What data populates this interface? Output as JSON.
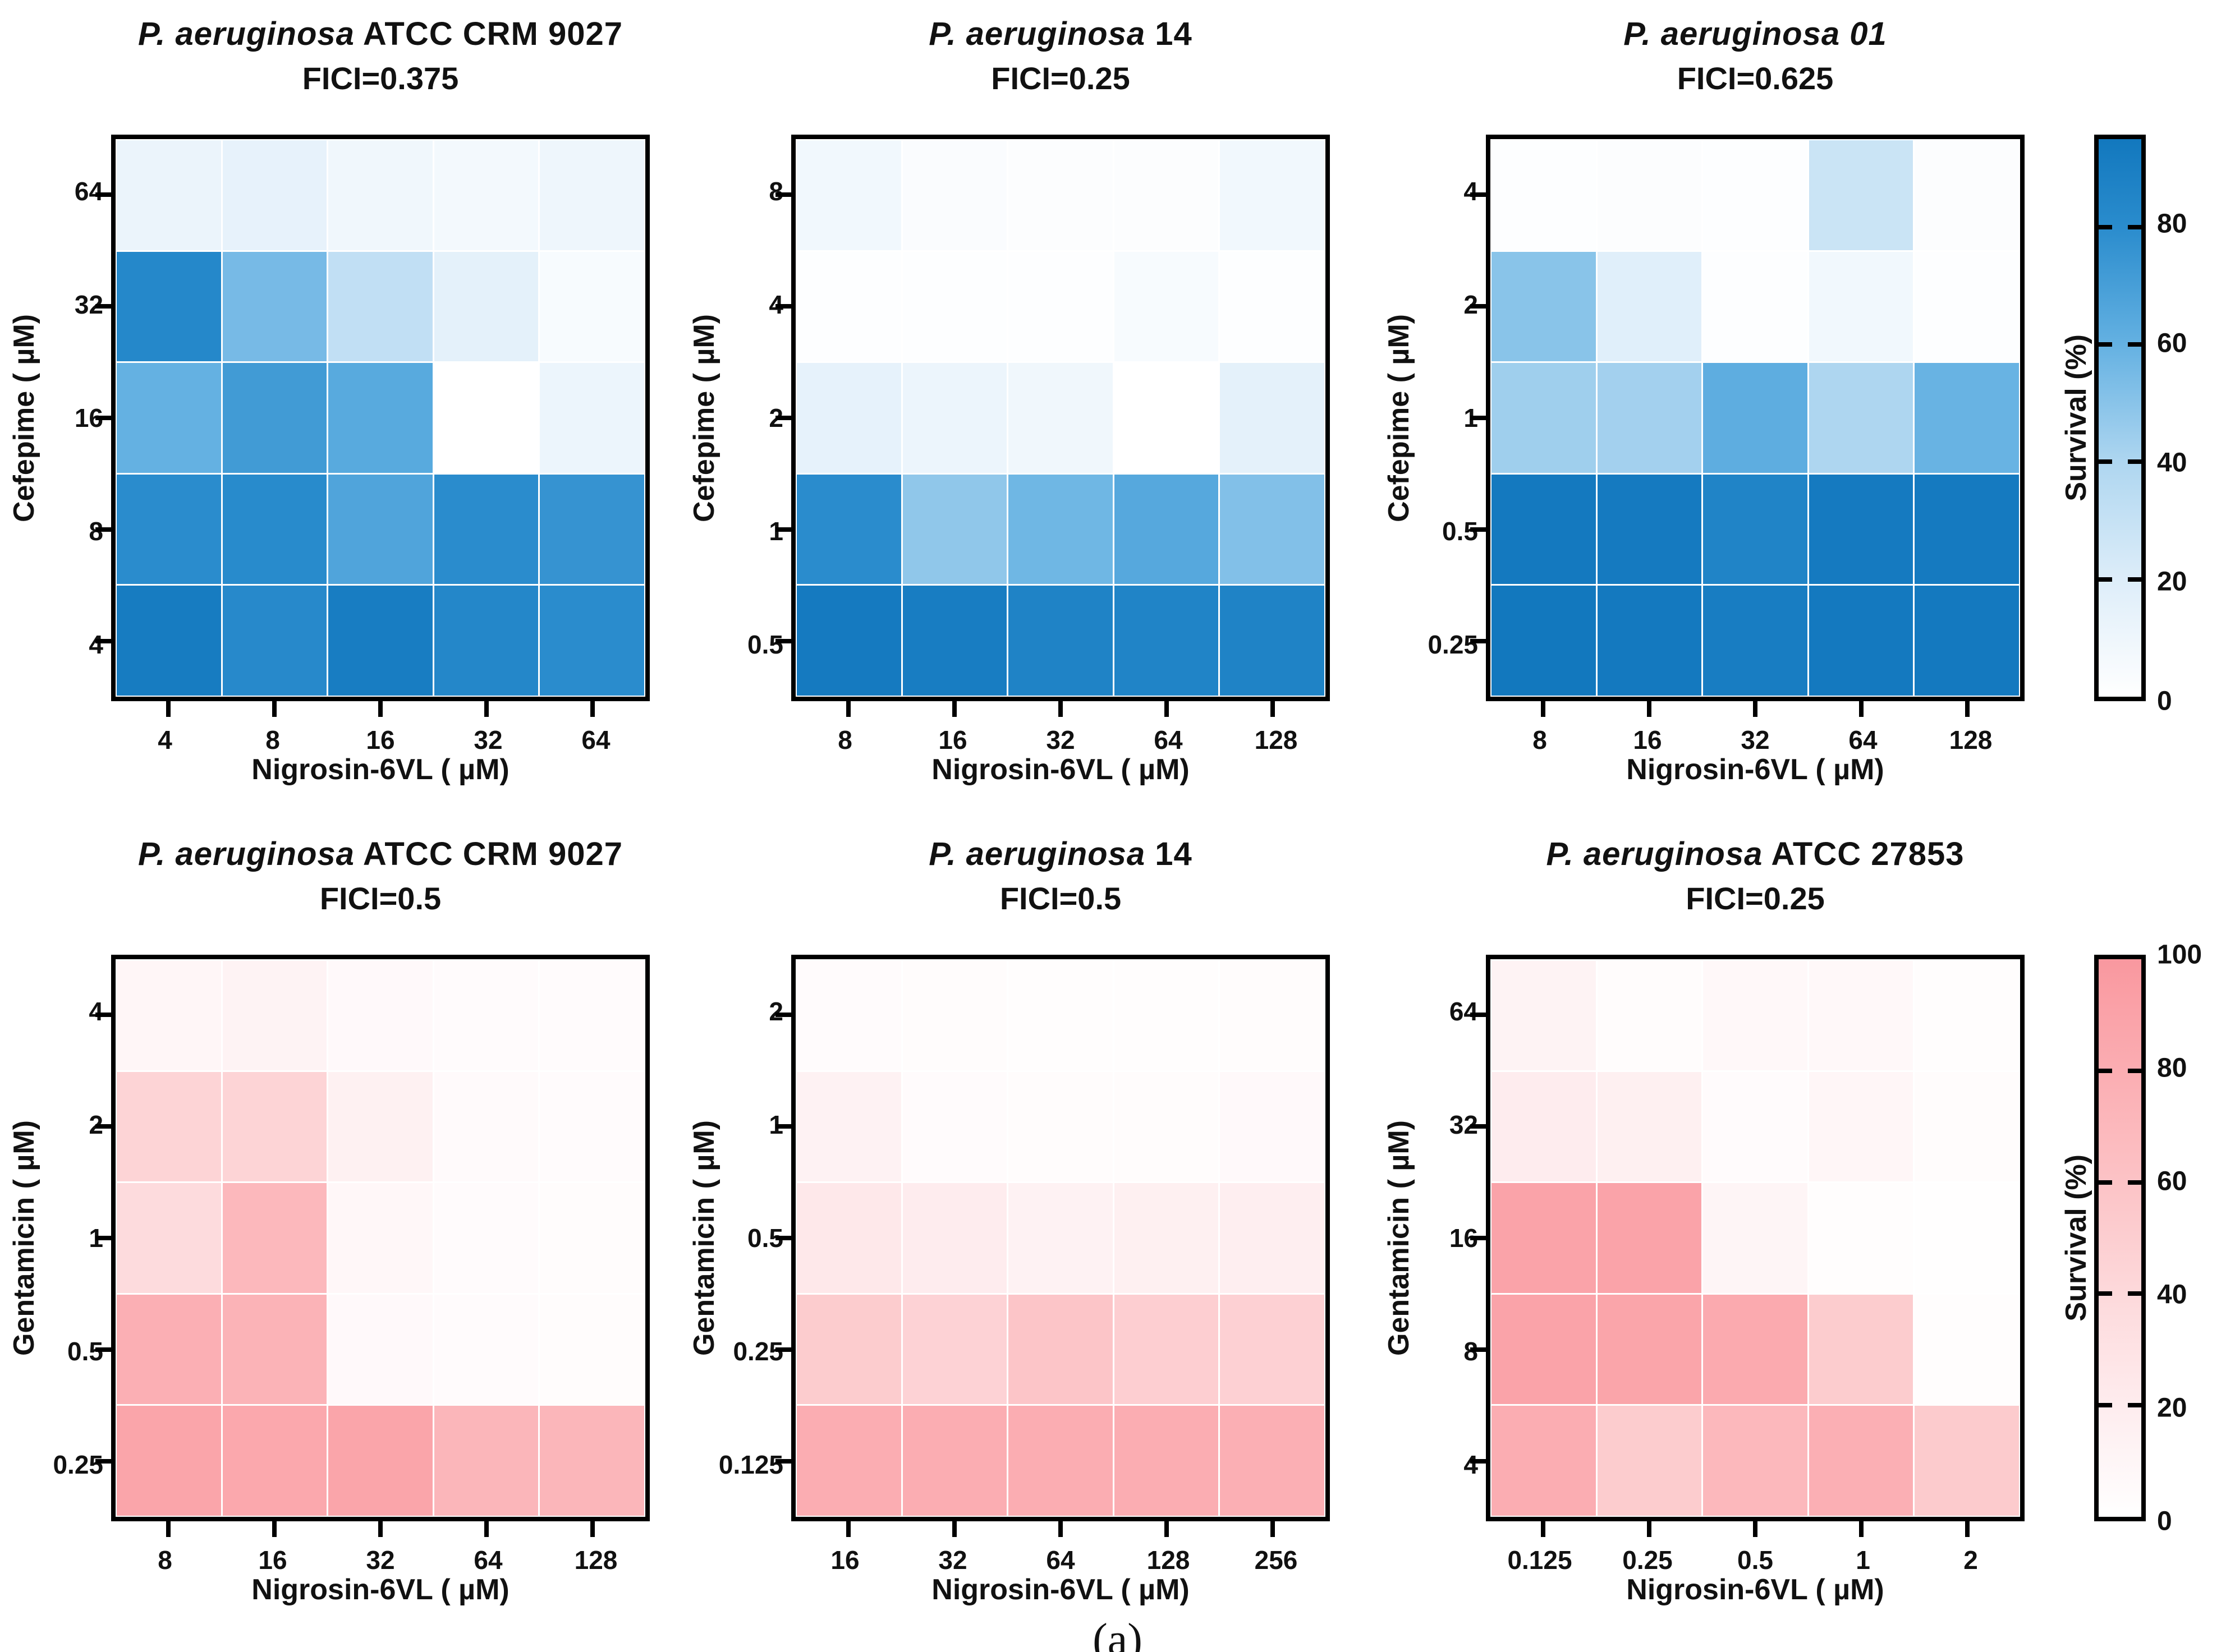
{
  "caption": "(a)",
  "colorbars": {
    "blue": {
      "label": "Survival (%)",
      "ticks": [
        80,
        60,
        40,
        20,
        0
      ],
      "max": 95,
      "stops": [
        "#ffffff",
        "#ddedf9",
        "#aed6f0",
        "#64b1e2",
        "#2a8ccd",
        "#0a71b9"
      ]
    },
    "pink": {
      "label": "Survival (%)",
      "ticks": [
        100,
        80,
        60,
        40,
        20,
        0
      ],
      "max": 100,
      "stops": [
        "#ffffff",
        "#feecee",
        "#fdd9db",
        "#fcc3c6",
        "#fbadb2",
        "#f9989f"
      ]
    }
  },
  "chart_data": [
    {
      "type": "heatmap",
      "row": 1,
      "position": 0,
      "scale": "blue",
      "title_italic": "P. aeruginosa",
      "title_rest": " ATCC CRM 9027",
      "subtitle": "FICI=0.375",
      "xlabel": "Nigrosin-6VL ( µM)",
      "ylabel": "Cefepime ( µM)",
      "x": [
        "4",
        "8",
        "16",
        "32",
        "64"
      ],
      "y": [
        "64",
        "32",
        "16",
        "8",
        "4"
      ],
      "values": [
        [
          12,
          14,
          9,
          7,
          10
        ],
        [
          83,
          55,
          32,
          16,
          5
        ],
        [
          60,
          72,
          64,
          0,
          11
        ],
        [
          80,
          81,
          67,
          80,
          76
        ],
        [
          92,
          82,
          91,
          84,
          80
        ]
      ]
    },
    {
      "type": "heatmap",
      "row": 1,
      "position": 1,
      "scale": "blue",
      "title_italic": "P. aeruginosa",
      "title_rest": " 14",
      "subtitle": "FICI=0.25",
      "xlabel": "Nigrosin-6VL ( µM)",
      "ylabel": "Cefepime ( µM)",
      "x": [
        "8",
        "16",
        "32",
        "64",
        "128"
      ],
      "y": [
        "8",
        "4",
        "2",
        "1",
        "0.5"
      ],
      "values": [
        [
          8,
          3,
          2,
          2,
          8
        ],
        [
          1,
          1,
          1,
          5,
          1
        ],
        [
          15,
          11,
          9,
          0,
          16
        ],
        [
          80,
          48,
          57,
          65,
          52
        ],
        [
          93,
          91,
          87,
          86,
          87
        ]
      ]
    },
    {
      "type": "heatmap",
      "row": 1,
      "position": 2,
      "scale": "blue",
      "title_italic": "P. aeruginosa 01",
      "title_rest": "",
      "subtitle": "FICI=0.625",
      "xlabel": "Nigrosin-6VL ( µM)",
      "ylabel": "Cefepime ( µM)",
      "x": [
        "8",
        "16",
        "32",
        "64",
        "128"
      ],
      "y": [
        "4",
        "2",
        "1",
        "0.5",
        "0.25"
      ],
      "values": [
        [
          1,
          2,
          1,
          28,
          2
        ],
        [
          50,
          18,
          1,
          8,
          1
        ],
        [
          44,
          43,
          62,
          40,
          59
        ],
        [
          94,
          93,
          86,
          93,
          93
        ],
        [
          95,
          94,
          91,
          94,
          94
        ]
      ]
    },
    {
      "type": "heatmap",
      "row": 2,
      "position": 0,
      "scale": "pink",
      "title_italic": "P. aeruginosa",
      "title_rest": " ATCC CRM 9027",
      "subtitle": "FICI=0.5",
      "xlabel": "Nigrosin-6VL ( µM)",
      "ylabel": "Gentamicin ( µM)",
      "x": [
        "8",
        "16",
        "32",
        "64",
        "128"
      ],
      "y": [
        "4",
        "2",
        "1",
        "0.5",
        "0.25"
      ],
      "values": [
        [
          10,
          13,
          6,
          4,
          4
        ],
        [
          45,
          45,
          15,
          5,
          4
        ],
        [
          38,
          70,
          8,
          4,
          3
        ],
        [
          78,
          75,
          6,
          4,
          3
        ],
        [
          88,
          85,
          88,
          72,
          72
        ]
      ]
    },
    {
      "type": "heatmap",
      "row": 2,
      "position": 1,
      "scale": "pink",
      "title_italic": "P. aeruginosa",
      "title_rest": " 14",
      "subtitle": "FICI=0.5",
      "xlabel": "Nigrosin-6VL ( µM)",
      "ylabel": "Gentamicin ( µM)",
      "x": [
        "16",
        "32",
        "64",
        "128",
        "256"
      ],
      "y": [
        "2",
        "1",
        "0.5",
        "0.25",
        "0.125"
      ],
      "values": [
        [
          4,
          3,
          2,
          2,
          3
        ],
        [
          14,
          4,
          3,
          3,
          6
        ],
        [
          24,
          20,
          14,
          16,
          18
        ],
        [
          52,
          46,
          58,
          50,
          48
        ],
        [
          80,
          80,
          80,
          80,
          78
        ]
      ]
    },
    {
      "type": "heatmap",
      "row": 2,
      "position": 2,
      "scale": "pink",
      "title_italic": "P. aeruginosa",
      "title_rest": " ATCC 27853",
      "subtitle": "FICI=0.25",
      "xlabel": "Nigrosin-6VL ( µM)",
      "ylabel": "Gentamicin ( µM)",
      "x": [
        "0.125",
        "0.25",
        "0.5",
        "1",
        "2"
      ],
      "y": [
        "64",
        "32",
        "16",
        "8",
        "4"
      ],
      "values": [
        [
          13,
          3,
          7,
          7,
          2
        ],
        [
          20,
          16,
          4,
          9,
          3
        ],
        [
          90,
          90,
          11,
          2,
          1
        ],
        [
          90,
          88,
          83,
          52,
          2
        ],
        [
          80,
          52,
          70,
          78,
          53
        ]
      ]
    }
  ]
}
